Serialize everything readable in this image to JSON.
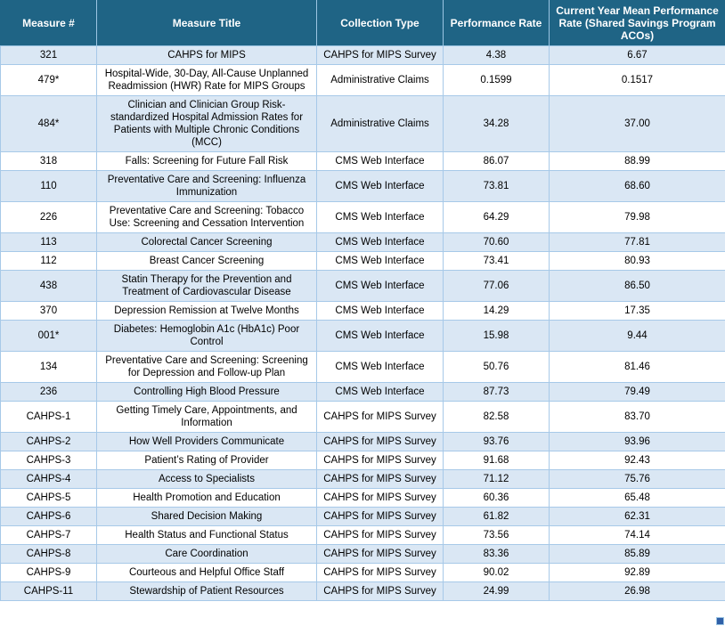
{
  "colors": {
    "header_bg": "#1F6485",
    "header_text": "#FFFFFF",
    "header_separator": "#9CC5E3",
    "row_shaded_bg": "#DAE7F4",
    "row_plain_bg": "#FFFFFF",
    "grid_border": "#A7C9E8",
    "body_text": "#000000",
    "resize_handle": "#3060A8"
  },
  "table": {
    "columns": [
      {
        "label": "Measure #"
      },
      {
        "label": "Measure Title"
      },
      {
        "label": "Collection Type"
      },
      {
        "label": "Performance Rate"
      },
      {
        "label": "Current Year Mean Performance Rate (Shared Savings Program ACOs)"
      }
    ],
    "rows": [
      {
        "measure": "321",
        "title": "CAHPS for MIPS",
        "collection": "CAHPS for MIPS Survey",
        "rate": "4.38",
        "mean": "6.67"
      },
      {
        "measure": "479*",
        "title": "Hospital-Wide, 30-Day, All-Cause Unplanned Readmission (HWR) Rate for MIPS Groups",
        "collection": "Administrative Claims",
        "rate": "0.1599",
        "mean": "0.1517"
      },
      {
        "measure": "484*",
        "title": "Clinician and Clinician Group Risk-standardized Hospital Admission Rates for Patients with Multiple Chronic Conditions (MCC)",
        "collection": "Administrative Claims",
        "rate": "34.28",
        "mean": "37.00"
      },
      {
        "measure": "318",
        "title": "Falls: Screening for Future Fall Risk",
        "collection": "CMS Web Interface",
        "rate": "86.07",
        "mean": "88.99"
      },
      {
        "measure": "110",
        "title": "Preventative Care and Screening: Influenza Immunization",
        "collection": "CMS Web Interface",
        "rate": "73.81",
        "mean": "68.60"
      },
      {
        "measure": "226",
        "title": "Preventative Care and Screening: Tobacco Use: Screening and Cessation Intervention",
        "collection": "CMS Web Interface",
        "rate": "64.29",
        "mean": "79.98"
      },
      {
        "measure": "113",
        "title": "Colorectal Cancer Screening",
        "collection": "CMS Web Interface",
        "rate": "70.60",
        "mean": "77.81"
      },
      {
        "measure": "112",
        "title": "Breast Cancer Screening",
        "collection": "CMS Web Interface",
        "rate": "73.41",
        "mean": "80.93"
      },
      {
        "measure": "438",
        "title": "Statin Therapy for the Prevention and Treatment of Cardiovascular Disease",
        "collection": "CMS Web Interface",
        "rate": "77.06",
        "mean": "86.50"
      },
      {
        "measure": "370",
        "title": "Depression Remission at Twelve Months",
        "collection": "CMS Web Interface",
        "rate": "14.29",
        "mean": "17.35"
      },
      {
        "measure": "001*",
        "title": "Diabetes: Hemoglobin A1c (HbA1c) Poor Control",
        "collection": "CMS Web Interface",
        "rate": "15.98",
        "mean": "9.44"
      },
      {
        "measure": "134",
        "title": "Preventative Care and Screening: Screening for Depression and Follow-up Plan",
        "collection": "CMS Web Interface",
        "rate": "50.76",
        "mean": "81.46"
      },
      {
        "measure": "236",
        "title": "Controlling High Blood Pressure",
        "collection": "CMS Web Interface",
        "rate": "87.73",
        "mean": "79.49"
      },
      {
        "measure": "CAHPS-1",
        "title": "Getting Timely Care, Appointments, and Information",
        "collection": "CAHPS for MIPS Survey",
        "rate": "82.58",
        "mean": "83.70"
      },
      {
        "measure": "CAHPS-2",
        "title": "How Well Providers Communicate",
        "collection": "CAHPS for MIPS Survey",
        "rate": "93.76",
        "mean": "93.96"
      },
      {
        "measure": "CAHPS-3",
        "title": "Patient’s Rating of Provider",
        "collection": "CAHPS for MIPS Survey",
        "rate": "91.68",
        "mean": "92.43"
      },
      {
        "measure": "CAHPS-4",
        "title": "Access to Specialists",
        "collection": "CAHPS for MIPS Survey",
        "rate": "71.12",
        "mean": "75.76"
      },
      {
        "measure": "CAHPS-5",
        "title": "Health Promotion and Education",
        "collection": "CAHPS for MIPS Survey",
        "rate": "60.36",
        "mean": "65.48"
      },
      {
        "measure": "CAHPS-6",
        "title": "Shared Decision Making",
        "collection": "CAHPS for MIPS Survey",
        "rate": "61.82",
        "mean": "62.31"
      },
      {
        "measure": "CAHPS-7",
        "title": "Health Status and Functional Status",
        "collection": "CAHPS for MIPS Survey",
        "rate": "73.56",
        "mean": "74.14"
      },
      {
        "measure": "CAHPS-8",
        "title": "Care Coordination",
        "collection": "CAHPS for MIPS Survey",
        "rate": "83.36",
        "mean": "85.89"
      },
      {
        "measure": "CAHPS-9",
        "title": "Courteous and Helpful Office Staff",
        "collection": "CAHPS for MIPS Survey",
        "rate": "90.02",
        "mean": "92.89"
      },
      {
        "measure": "CAHPS-11",
        "title": "Stewardship of Patient Resources",
        "collection": "CAHPS for MIPS Survey",
        "rate": "24.99",
        "mean": "26.98"
      }
    ]
  }
}
